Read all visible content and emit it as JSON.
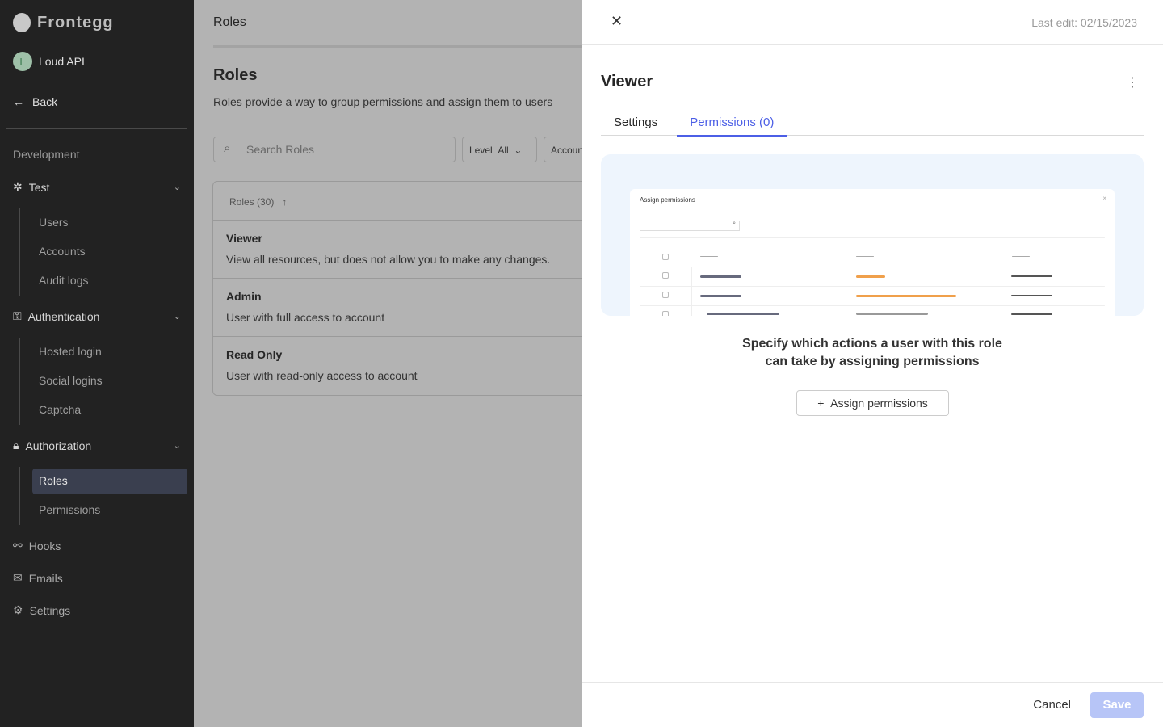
{
  "sidebar": {
    "brand": "Frontegg",
    "account": {
      "initial": "L",
      "name": "Loud API"
    },
    "back": "Back",
    "section": "Development",
    "test": {
      "label": "Test",
      "items": [
        "Users",
        "Accounts",
        "Audit logs"
      ]
    },
    "authentication": {
      "label": "Authentication",
      "items": [
        "Hosted login",
        "Social logins",
        "Captcha"
      ]
    },
    "authorization": {
      "label": "Authorization",
      "items": [
        "Roles",
        "Permissions"
      ]
    },
    "hooks": "Hooks",
    "emails": "Emails",
    "settings": "Settings"
  },
  "main": {
    "breadcrumb": "Roles",
    "title": "Roles",
    "description": "Roles provide a way to group permissions and assign them to users",
    "search_placeholder": "Search Roles",
    "level_filter": {
      "label": "Level",
      "value": "All"
    },
    "account_filter": "Account",
    "table_header": "Roles (30)",
    "rows": [
      {
        "name": "Viewer",
        "description": "View all resources, but does not allow you to make any changes."
      },
      {
        "name": "Admin",
        "description": "User with full access to account"
      },
      {
        "name": "Read Only",
        "description": "User with read-only access to account"
      }
    ]
  },
  "panel": {
    "last_edit": "Last edit: 02/15/2023",
    "title": "Viewer",
    "tabs": [
      "Settings",
      "Permissions (0)"
    ],
    "active_tab": "Permissions (0)",
    "illustration_title": "Assign permissions",
    "message_line1": "Specify which actions a user with this role",
    "message_line2": "can take by assigning permissions",
    "assign_button": "Assign permissions",
    "cancel": "Cancel",
    "save": "Save"
  },
  "colors": {
    "accent": "#4c5fe6",
    "save_disabled": "#b7c5f7",
    "sidebar": "#222222"
  }
}
